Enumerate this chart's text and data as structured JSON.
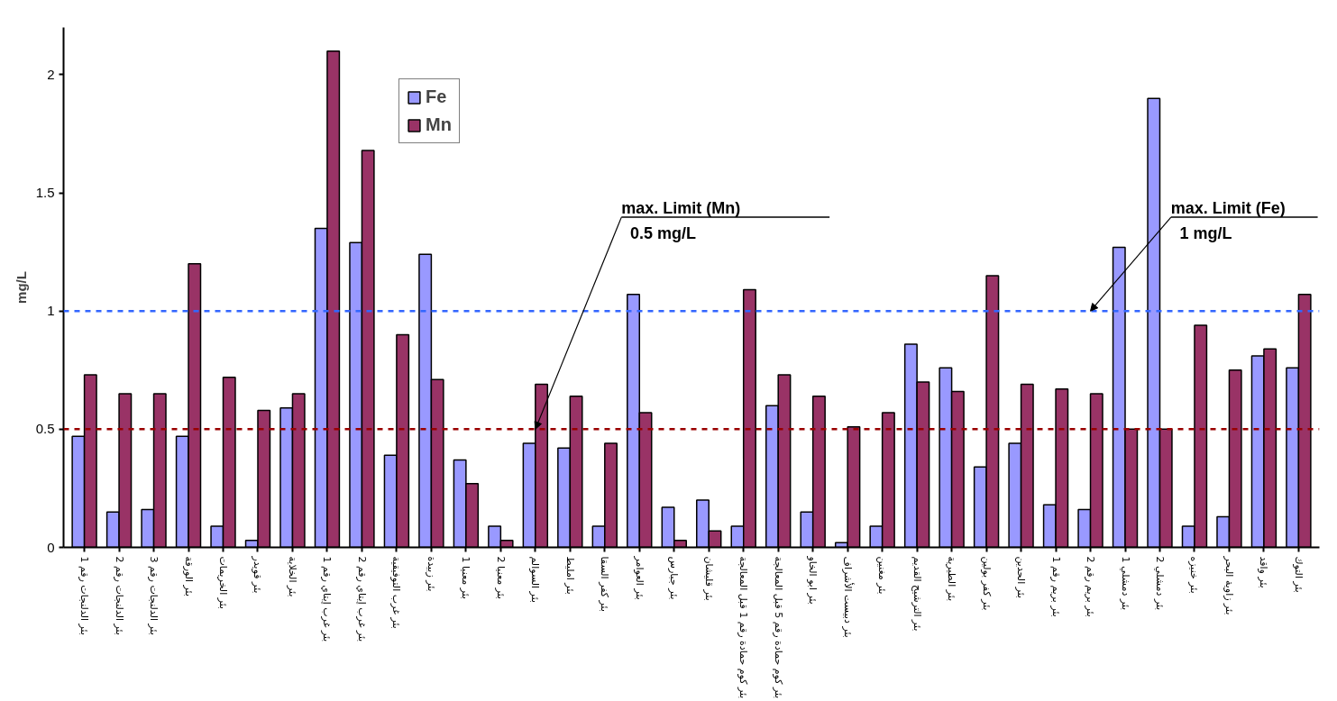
{
  "chart_data": {
    "type": "bar",
    "ylabel": "mg/L",
    "categories": [
      "بئر الدلنجات رقم 1",
      "بئر الدلنجات رقم 2",
      "بئر الدلنجات رقم 3",
      "بئر الورقة",
      "بئر الخريمات",
      "بئر قويدر",
      "بئر الخلاية",
      "بئر غرب إيتاي رقم 1",
      "بئر غرب إيتاي رقم 2",
      "بئر غرب التوفيقية",
      "بئر زبيدة",
      "بئر معنيا 1",
      "بئر معنيا 2",
      "بئر السوالم",
      "بئر امليط",
      "بئر كفر السقا",
      "بئر العوامر",
      "بئر جبارس",
      "بئر قليشان",
      "بئر كوم حمادة رقم 1 قبل المعالجة",
      "بئر كوم حمادة رقم 5 قبل المعالجة",
      "بئر ابو الخاو",
      "بئر دبيست الأشراف",
      "بئر مغنين",
      "بئر الترشيح القديم",
      "بئر الطيرية",
      "بئر كفر بولين",
      "بئر الحدين",
      "بئر بريم رقم 1",
      "بئر بريم رقم 2",
      "بئر دمشلي 1",
      "بئر دمشلي 2",
      "بئر خنيزه",
      "بئر زاوية البحر",
      "بئر واقد",
      "بئر التوك"
    ],
    "series": [
      {
        "name": "Fe",
        "color": "#9999ff",
        "values": [
          0.47,
          0.15,
          0.16,
          0.47,
          0.09,
          0.03,
          0.59,
          1.35,
          1.29,
          0.39,
          1.24,
          0.37,
          0.09,
          0.44,
          0.42,
          0.09,
          1.07,
          0.17,
          0.2,
          0.09,
          0.6,
          0.15,
          0.02,
          0.09,
          0.86,
          0.76,
          0.34,
          0.44,
          0.18,
          0.16,
          1.27,
          1.9,
          0.09,
          0.13,
          0.81,
          0.76
        ]
      },
      {
        "name": "Mn",
        "color": "#993366",
        "values": [
          0.73,
          0.65,
          0.65,
          1.2,
          0.72,
          0.58,
          0.65,
          2.1,
          1.68,
          0.9,
          0.71,
          0.27,
          0.03,
          0.69,
          0.64,
          0.44,
          0.57,
          0.03,
          0.07,
          1.09,
          0.73,
          0.64,
          0.51,
          0.57,
          0.7,
          0.66,
          1.15,
          0.69,
          0.67,
          0.65,
          0.5,
          0.5,
          0.94,
          0.75,
          0.84,
          1.07
        ]
      }
    ],
    "ylim": [
      0,
      2.2
    ],
    "yticks": [
      0,
      0.5,
      1,
      1.5,
      2
    ],
    "grid": false,
    "legend": "top left",
    "ref_lines": [
      {
        "axis": "y",
        "value": 0.5,
        "color": "#990000",
        "line_style": "dashed"
      },
      {
        "axis": "y",
        "value": 1,
        "color": "#3366ff",
        "line_style": "dashed"
      }
    ],
    "annotations": [
      "max. Limit (Mn)",
      {
        "text": "0.5 mg/L",
        "x": "بئر السوالم",
        "y": 0.5
      },
      "max. Limit (Fe)",
      {
        "text": "1 mg/L",
        "x": "بئر بريم رقم 2",
        "y": 1
      }
    ]
  }
}
